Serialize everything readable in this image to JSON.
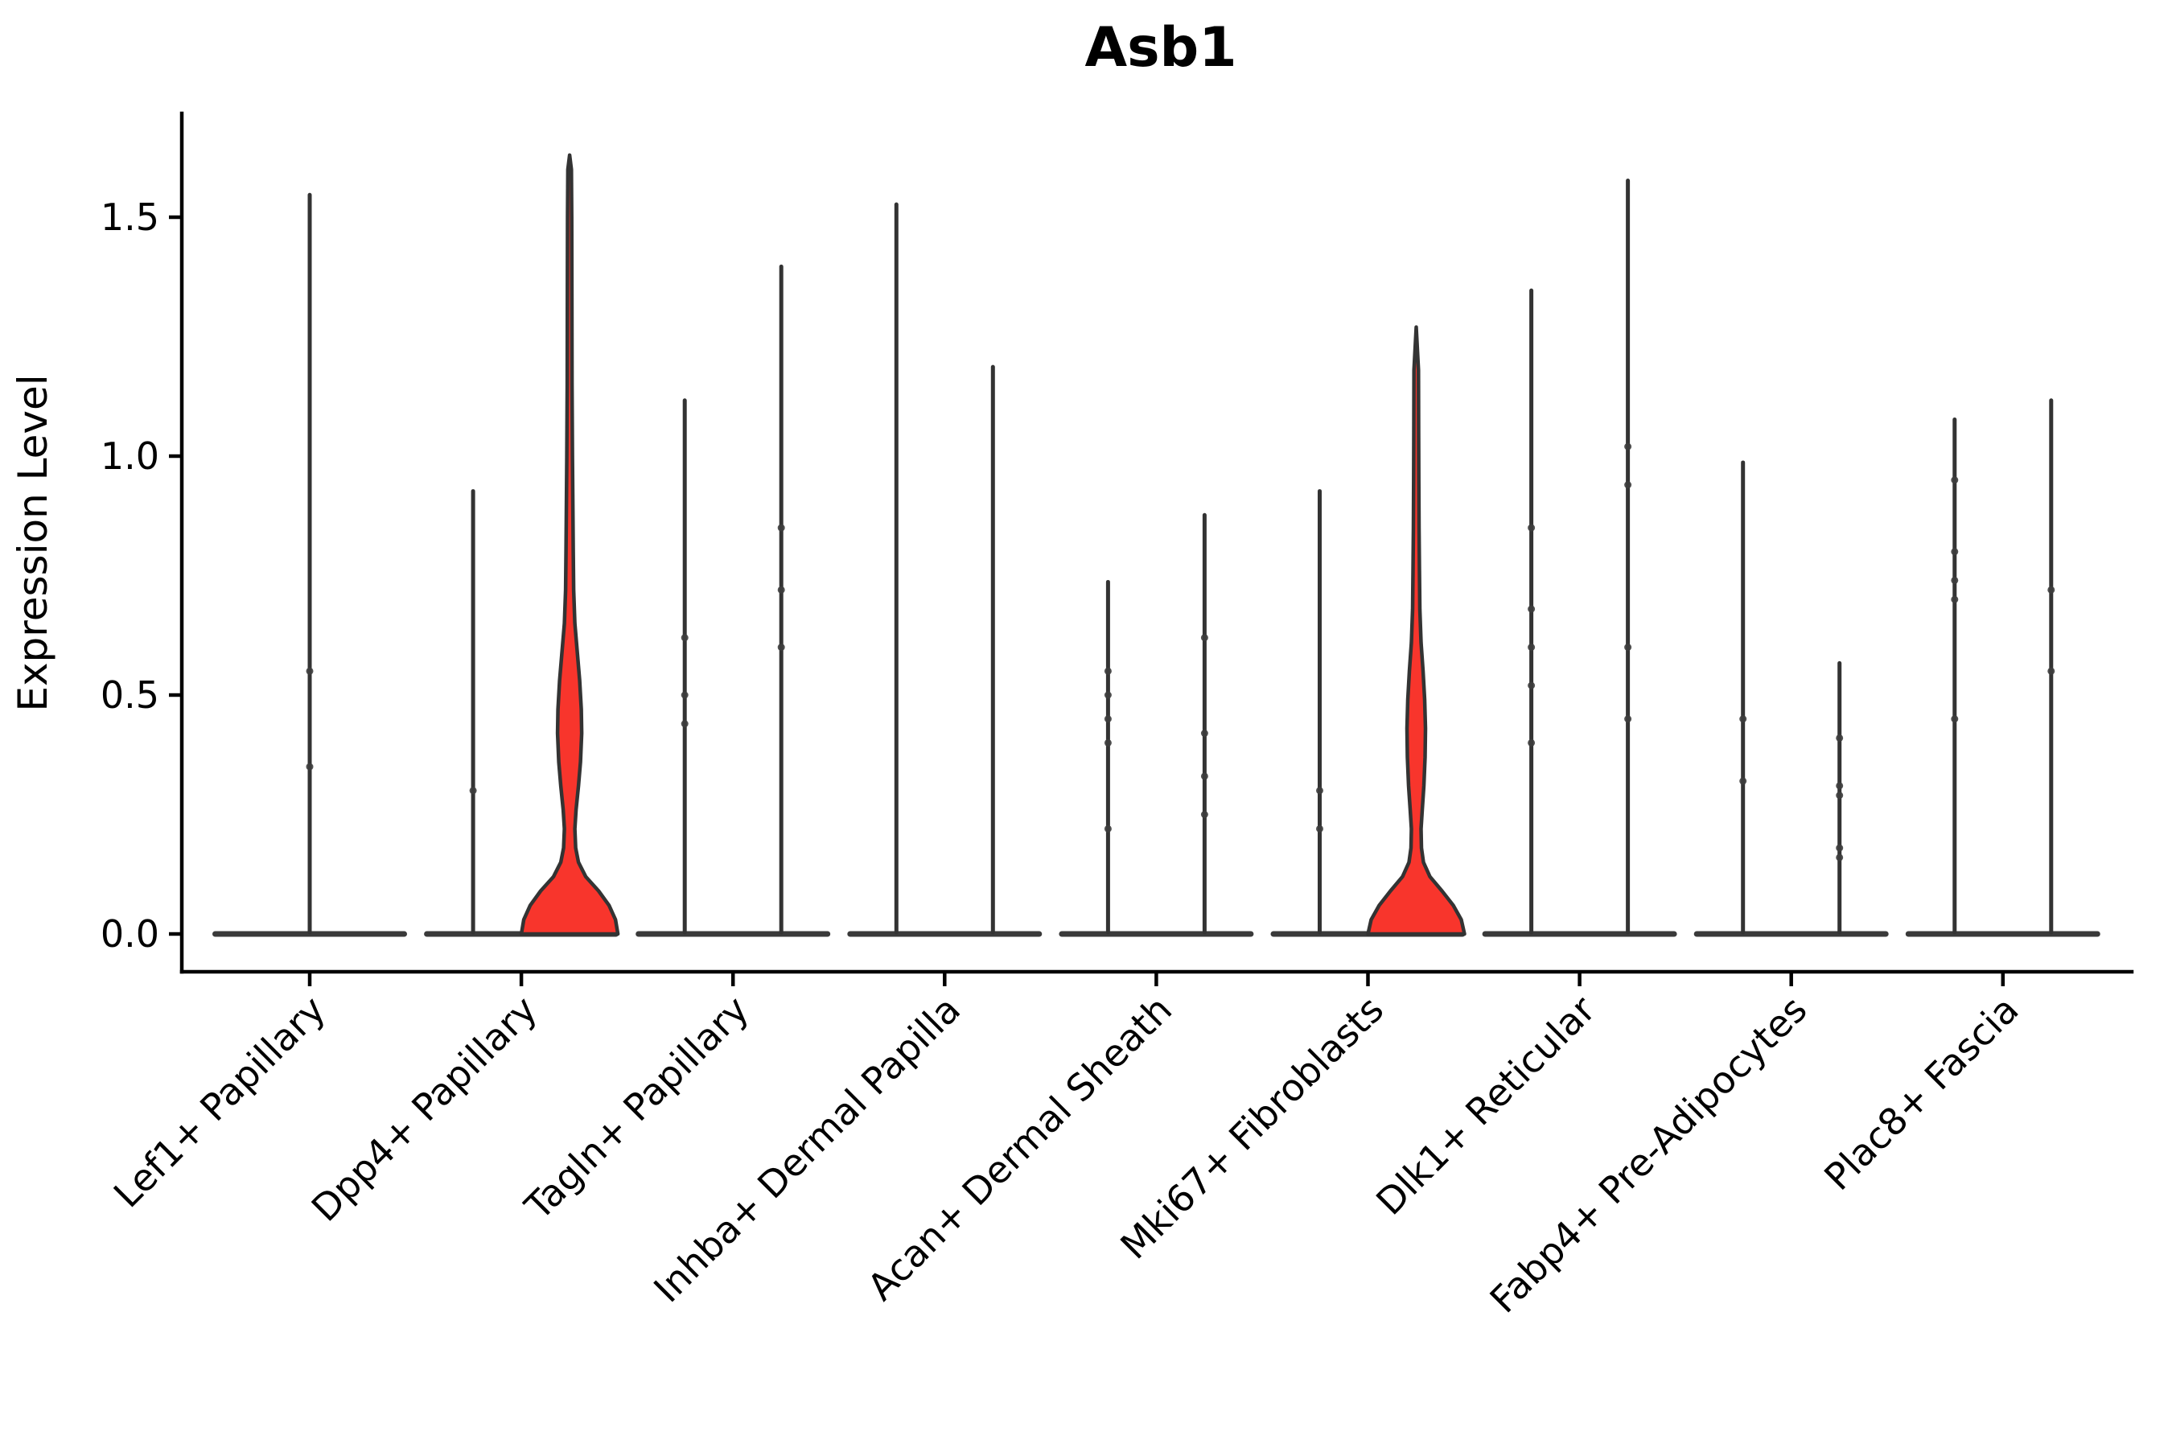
{
  "figure": {
    "title": "Asb1",
    "ylabel": "Expression Level"
  },
  "colors": {
    "violin_fill_red": "#F8352C",
    "violin_outline": "#333333",
    "violin_base": "#3A3A3A",
    "axis": "#000000",
    "background": "#FFFFFF"
  },
  "chart_data": {
    "type": "violin",
    "title": "Asb1",
    "xlabel": "",
    "ylabel": "Expression Level",
    "yticks": [
      0.0,
      0.5,
      1.0,
      1.5
    ],
    "ytick_labels": [
      "0.0",
      "0.5",
      "1.0",
      "1.5"
    ],
    "ylim": [
      -0.08,
      1.72
    ],
    "grid": false,
    "legend": "none",
    "categories": [
      "Lef1+ Papillary",
      "Dpp4+ Papillary",
      "Tagln+ Papillary",
      "Inhba+ Dermal Papilla",
      "Acan+ Dermal Sheath",
      "Mki67+ Fibroblasts",
      "Dlk1+ Reticular",
      "Fabp4+ Pre-Adipocytes",
      "Plac8+ Fascia"
    ],
    "description": "Violin plot of Asb1 expression; most mass at 0 (flat base) with a thin spike to the max expressed cell. Dpp4+ Papillary and Mki67+ Fibroblasts right-hand violins show a red filled density bulge around 0.3-0.6 and a wide base below ~0.15.",
    "violins": [
      {
        "category_index": 0,
        "offset": "center",
        "max_expression": 1.55,
        "filled": false,
        "points": [
          0.55,
          0.35
        ]
      },
      {
        "category_index": 1,
        "offset": "left",
        "max_expression": 0.93,
        "filled": false,
        "points": [
          0.3
        ]
      },
      {
        "category_index": 1,
        "offset": "right",
        "max_expression": 1.63,
        "filled": true,
        "fill_color": "#F8352C",
        "profile": [
          [
            0,
            60
          ],
          [
            0.03,
            57
          ],
          [
            0.06,
            49
          ],
          [
            0.09,
            36
          ],
          [
            0.12,
            20
          ],
          [
            0.15,
            11
          ],
          [
            0.18,
            7.5
          ],
          [
            0.22,
            6.5
          ],
          [
            0.26,
            8
          ],
          [
            0.31,
            11
          ],
          [
            0.36,
            13.5
          ],
          [
            0.42,
            15
          ],
          [
            0.47,
            14.5
          ],
          [
            0.53,
            12.5
          ],
          [
            0.59,
            9.5
          ],
          [
            0.65,
            6.5
          ],
          [
            0.72,
            5
          ],
          [
            0.8,
            4.5
          ],
          [
            0.9,
            4
          ],
          [
            1.0,
            3.5
          ],
          [
            1.15,
            3
          ],
          [
            1.35,
            2.8
          ],
          [
            1.5,
            2.6
          ],
          [
            1.6,
            2.2
          ],
          [
            1.63,
            0
          ]
        ]
      },
      {
        "category_index": 2,
        "offset": "left",
        "max_expression": 1.12,
        "filled": false,
        "points": [
          0.62,
          0.5,
          0.44
        ]
      },
      {
        "category_index": 2,
        "offset": "right",
        "max_expression": 1.4,
        "filled": false,
        "points": [
          0.85,
          0.72,
          0.6
        ]
      },
      {
        "category_index": 3,
        "offset": "left",
        "max_expression": 1.53,
        "filled": false,
        "points": []
      },
      {
        "category_index": 3,
        "offset": "right",
        "max_expression": 1.19,
        "filled": false,
        "points": []
      },
      {
        "category_index": 4,
        "offset": "left",
        "max_expression": 0.74,
        "filled": false,
        "points": [
          0.55,
          0.5,
          0.45,
          0.4,
          0.22
        ]
      },
      {
        "category_index": 4,
        "offset": "right",
        "max_expression": 0.88,
        "filled": false,
        "points": [
          0.62,
          0.42,
          0.33,
          0.25
        ]
      },
      {
        "category_index": 5,
        "offset": "left",
        "max_expression": 0.93,
        "filled": false,
        "points": [
          0.3,
          0.22
        ]
      },
      {
        "category_index": 5,
        "offset": "right",
        "max_expression": 1.27,
        "filled": true,
        "fill_color": "#F8352C",
        "profile": [
          [
            0,
            60
          ],
          [
            0.03,
            56
          ],
          [
            0.06,
            46
          ],
          [
            0.09,
            32
          ],
          [
            0.12,
            17
          ],
          [
            0.15,
            9
          ],
          [
            0.18,
            6.5
          ],
          [
            0.22,
            6
          ],
          [
            0.26,
            7.5
          ],
          [
            0.31,
            9.5
          ],
          [
            0.37,
            11
          ],
          [
            0.43,
            11.5
          ],
          [
            0.49,
            10.5
          ],
          [
            0.55,
            8.5
          ],
          [
            0.61,
            6
          ],
          [
            0.68,
            4.5
          ],
          [
            0.76,
            4
          ],
          [
            0.85,
            3.5
          ],
          [
            0.95,
            3.2
          ],
          [
            1.05,
            3
          ],
          [
            1.18,
            2.8
          ],
          [
            1.27,
            0
          ]
        ]
      },
      {
        "category_index": 6,
        "offset": "left",
        "max_expression": 1.35,
        "filled": false,
        "points": [
          0.85,
          0.68,
          0.6,
          0.52,
          0.4
        ]
      },
      {
        "category_index": 6,
        "offset": "right",
        "max_expression": 1.58,
        "filled": false,
        "points": [
          1.02,
          0.94,
          0.6,
          0.45
        ]
      },
      {
        "category_index": 7,
        "offset": "left",
        "max_expression": 0.99,
        "filled": false,
        "points": [
          0.45,
          0.32
        ]
      },
      {
        "category_index": 7,
        "offset": "right",
        "max_expression": 0.57,
        "filled": false,
        "points": [
          0.41,
          0.31,
          0.29,
          0.18,
          0.16
        ]
      },
      {
        "category_index": 8,
        "offset": "left",
        "max_expression": 1.08,
        "filled": false,
        "points": [
          0.95,
          0.8,
          0.74,
          0.7,
          0.45
        ]
      },
      {
        "category_index": 8,
        "offset": "right",
        "max_expression": 1.12,
        "filled": false,
        "points": [
          0.72,
          0.55
        ]
      }
    ]
  }
}
